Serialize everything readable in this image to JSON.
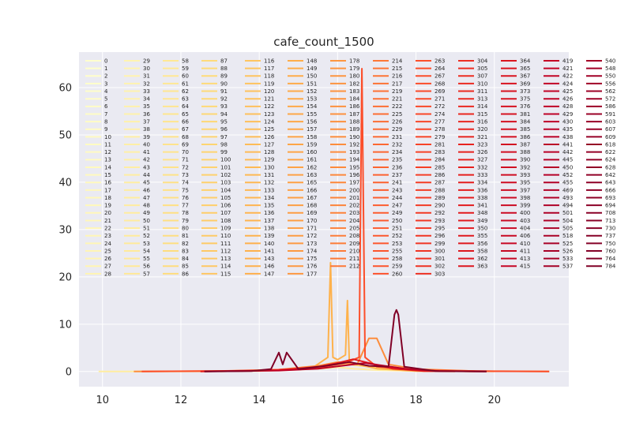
{
  "chart_data": {
    "type": "line",
    "title": "cafe_count_1500",
    "xlabel": "",
    "ylabel": "",
    "xlim": [
      9.4,
      21.9
    ],
    "ylim": [
      -3.2,
      67.5
    ],
    "x_ticks": [
      10,
      12,
      14,
      16,
      18,
      20
    ],
    "y_ticks": [
      0,
      10,
      20,
      30,
      40,
      50,
      60
    ],
    "grid": true,
    "legend_placement": "top, multi-column",
    "colormap": [
      "#ffffcc",
      "#ffeda0",
      "#fed976",
      "#feb24c",
      "#fd8d3c",
      "#fc4e2a",
      "#e31a1c",
      "#bd0026",
      "#800026"
    ],
    "background_color": "#eaeaf2",
    "legend_columns": [
      [
        "0",
        "1",
        "2",
        "3",
        "4",
        "5",
        "6",
        "7",
        "8",
        "9",
        "10",
        "11",
        "12",
        "13",
        "14",
        "15",
        "16",
        "17",
        "18",
        "19",
        "20",
        "21",
        "22",
        "23",
        "24",
        "25",
        "26",
        "27",
        "28"
      ],
      [
        "29",
        "30",
        "31",
        "32",
        "33",
        "34",
        "35",
        "36",
        "37",
        "38",
        "39",
        "40",
        "41",
        "42",
        "43",
        "44",
        "45",
        "46",
        "47",
        "48",
        "49",
        "50",
        "51",
        "52",
        "53",
        "54",
        "55",
        "56",
        "57"
      ],
      [
        "58",
        "59",
        "60",
        "61",
        "62",
        "63",
        "64",
        "65",
        "66",
        "67",
        "68",
        "69",
        "70",
        "71",
        "72",
        "73",
        "74",
        "75",
        "76",
        "77",
        "78",
        "79",
        "80",
        "81",
        "82",
        "83",
        "84",
        "85",
        "86"
      ],
      [
        "87",
        "88",
        "89",
        "90",
        "91",
        "92",
        "93",
        "94",
        "95",
        "96",
        "97",
        "98",
        "99",
        "100",
        "101",
        "102",
        "103",
        "104",
        "105",
        "106",
        "107",
        "108",
        "109",
        "110",
        "111",
        "112",
        "113",
        "114",
        "115"
      ],
      [
        "116",
        "117",
        "118",
        "119",
        "120",
        "121",
        "122",
        "123",
        "124",
        "125",
        "126",
        "127",
        "128",
        "129",
        "130",
        "131",
        "132",
        "133",
        "134",
        "135",
        "136",
        "137",
        "138",
        "139",
        "140",
        "141",
        "143",
        "146",
        "147"
      ],
      [
        "148",
        "149",
        "150",
        "151",
        "152",
        "153",
        "154",
        "155",
        "156",
        "157",
        "158",
        "159",
        "160",
        "161",
        "162",
        "163",
        "165",
        "166",
        "167",
        "168",
        "169",
        "170",
        "171",
        "172",
        "173",
        "174",
        "175",
        "176",
        "177"
      ],
      [
        "178",
        "179",
        "180",
        "182",
        "183",
        "184",
        "186",
        "187",
        "188",
        "189",
        "190",
        "192",
        "193",
        "194",
        "195",
        "196",
        "197",
        "200",
        "201",
        "202",
        "203",
        "204",
        "205",
        "208",
        "209",
        "210",
        "211",
        "212"
      ],
      [
        "214",
        "215",
        "216",
        "217",
        "219",
        "221",
        "222",
        "225",
        "226",
        "229",
        "231",
        "232",
        "234",
        "235",
        "236",
        "237",
        "241",
        "243",
        "244",
        "247",
        "249",
        "250",
        "251",
        "252",
        "253",
        "255",
        "258",
        "259",
        "260"
      ],
      [
        "263",
        "264",
        "267",
        "268",
        "269",
        "271",
        "272",
        "274",
        "277",
        "278",
        "279",
        "281",
        "283",
        "284",
        "285",
        "286",
        "287",
        "288",
        "289",
        "290",
        "292",
        "293",
        "295",
        "296",
        "299",
        "300",
        "301",
        "302",
        "303"
      ],
      [
        "304",
        "305",
        "307",
        "310",
        "311",
        "313",
        "314",
        "315",
        "316",
        "320",
        "321",
        "323",
        "326",
        "327",
        "332",
        "333",
        "334",
        "336",
        "338",
        "341",
        "348",
        "349",
        "350",
        "355",
        "356",
        "358",
        "362",
        "363"
      ],
      [
        "364",
        "365",
        "367",
        "369",
        "373",
        "375",
        "376",
        "381",
        "384",
        "385",
        "386",
        "387",
        "388",
        "390",
        "392",
        "393",
        "395",
        "397",
        "398",
        "399",
        "400",
        "403",
        "404",
        "406",
        "410",
        "411",
        "413",
        "415"
      ],
      [
        "419",
        "421",
        "422",
        "424",
        "425",
        "426",
        "428",
        "429",
        "430",
        "435",
        "438",
        "441",
        "442",
        "445",
        "450",
        "452",
        "455",
        "469",
        "493",
        "494",
        "501",
        "504",
        "505",
        "518",
        "525",
        "526",
        "533",
        "537"
      ],
      [
        "540",
        "548",
        "550",
        "556",
        "562",
        "572",
        "586",
        "591",
        "603",
        "607",
        "609",
        "618",
        "622",
        "624",
        "628",
        "642",
        "643",
        "666",
        "693",
        "694",
        "708",
        "713",
        "730",
        "737",
        "750",
        "760",
        "764",
        "784"
      ]
    ],
    "series": [
      {
        "color": "#ffeda0",
        "x": [
          9.9,
          12.0,
          14.0,
          15.0,
          15.6,
          16.0,
          16.4,
          17.0,
          18.0,
          20.0
        ],
        "y": [
          0,
          0,
          0.1,
          0.4,
          0.6,
          0.9,
          0.6,
          0.3,
          0.1,
          0
        ]
      },
      {
        "color": "#fed976",
        "x": [
          12.5,
          14.0,
          15.0,
          15.6,
          16.2,
          16.8,
          17.5,
          18.5,
          19.5
        ],
        "y": [
          0,
          0.2,
          0.5,
          1.2,
          1.6,
          1.0,
          0.4,
          0.1,
          0
        ]
      },
      {
        "color": "#feb24c",
        "x": [
          13.0,
          14.5,
          15.4,
          15.75,
          15.82,
          15.88,
          16.0,
          16.2,
          16.25,
          16.3,
          16.5,
          17.0,
          18.0,
          19.0
        ],
        "y": [
          0,
          0.3,
          1.0,
          3.0,
          23.0,
          3.0,
          2.5,
          3.5,
          15.0,
          2.0,
          1.5,
          0.6,
          0.1,
          0
        ]
      },
      {
        "color": "#fd8d3c",
        "x": [
          10.8,
          13.0,
          14.5,
          15.5,
          16.0,
          16.5,
          16.8,
          17.0,
          17.3,
          18.0,
          19.5,
          21.4
        ],
        "y": [
          0,
          0.1,
          0.4,
          1.2,
          2.0,
          1.5,
          7.0,
          7.0,
          1.5,
          0.5,
          0.1,
          0
        ]
      },
      {
        "color": "#fc4e2a",
        "x": [
          11.0,
          14.0,
          15.5,
          16.2,
          16.55,
          16.62,
          16.7,
          17.0,
          18.0,
          20.0,
          21.4
        ],
        "y": [
          0,
          0.2,
          0.8,
          1.8,
          3.0,
          64.0,
          3.0,
          1.0,
          0.3,
          0.05,
          0
        ]
      },
      {
        "color": "#e31a1c",
        "x": [
          12.5,
          14.5,
          15.5,
          16.0,
          16.4,
          16.9,
          17.4,
          18.2,
          19.8
        ],
        "y": [
          0,
          0.3,
          1.0,
          1.8,
          2.6,
          1.6,
          0.6,
          0.1,
          0
        ]
      },
      {
        "color": "#bd0026",
        "x": [
          12.6,
          14.5,
          15.5,
          16.1,
          16.7,
          17.2,
          17.8,
          18.6,
          19.8
        ],
        "y": [
          0,
          0.2,
          0.6,
          1.2,
          1.8,
          1.2,
          0.5,
          0.1,
          0
        ]
      },
      {
        "color": "#800026",
        "x": [
          12.6,
          13.8,
          14.3,
          14.5,
          14.6,
          14.7,
          15.0,
          15.7,
          16.3,
          16.8,
          17.3,
          17.45,
          17.5,
          17.55,
          17.7,
          18.5,
          19.8
        ],
        "y": [
          0,
          0.1,
          0.5,
          4.0,
          1.5,
          4.0,
          0.5,
          1.2,
          2.0,
          1.2,
          1.0,
          12.0,
          13.0,
          12.0,
          1.0,
          0.1,
          0
        ]
      }
    ]
  }
}
